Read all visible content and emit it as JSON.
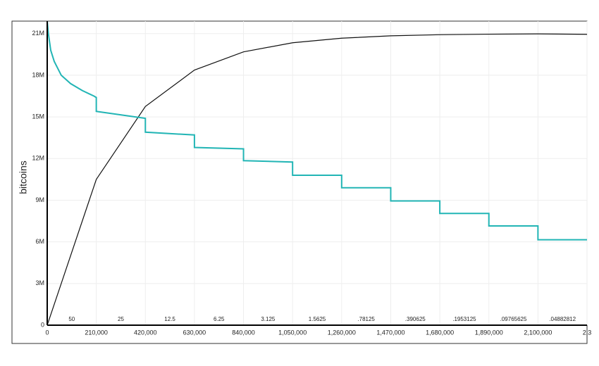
{
  "chart_data": {
    "type": "line",
    "y_label": "bitcoins",
    "xlim": [
      0,
      2310000
    ],
    "ylim": [
      0,
      21900000
    ],
    "grid": true,
    "xticks": [
      0,
      {
        "value": 210000,
        "label": "210,000"
      },
      {
        "value": 420000,
        "label": "420,000"
      },
      {
        "value": 630000,
        "label": "630,000"
      },
      {
        "value": 840000,
        "label": "840,000"
      },
      {
        "value": 1050000,
        "label": "1,050,000"
      },
      {
        "value": 1260000,
        "label": "1,260,000"
      },
      {
        "value": 1470000,
        "label": "1,470,000"
      },
      {
        "value": 1680000,
        "label": "1,680,000"
      },
      {
        "value": 1890000,
        "label": "1,890,000"
      },
      {
        "value": 2100000,
        "label": "2,100,000"
      },
      {
        "value": 2310000,
        "label": "2,3"
      }
    ],
    "yticks": [
      0,
      {
        "value": 3000000,
        "label": "3M"
      },
      {
        "value": 6000000,
        "label": "6M"
      },
      {
        "value": 9000000,
        "label": "9M"
      },
      {
        "value": 12000000,
        "label": "12M"
      },
      {
        "value": 15000000,
        "label": "15M"
      },
      {
        "value": 18000000,
        "label": "18M"
      },
      {
        "value": 21000000,
        "label": "21M"
      }
    ],
    "reward_labels": [
      "50",
      "25",
      "12.5",
      "6.25",
      "3.125",
      "1.5625",
      ".78125",
      ".390625",
      ".1953125",
      ".09765625",
      ".04882812"
    ],
    "series": [
      {
        "color": "#111111",
        "x": [
          0,
          210000,
          420000,
          630000,
          840000,
          1050000,
          1260000,
          1470000,
          1680000,
          1890000,
          2100000,
          2310000
        ],
        "values": [
          0,
          10500000,
          15750000,
          18375000,
          19687500,
          20340000,
          20670000,
          20840000,
          20920000,
          20960000,
          20980000,
          20950000
        ]
      },
      {
        "color": "#22b5b5",
        "x": [
          0,
          5000,
          15000,
          30000,
          60000,
          100000,
          150000,
          200000,
          210000,
          210000,
          420000,
          420000,
          630000,
          630000,
          840000,
          840000,
          1050000,
          1050000,
          1260000,
          1260000,
          1470000,
          1470000,
          1680000,
          1680000,
          1890000,
          1890000,
          2100000,
          2100000,
          2310000
        ],
        "values": [
          21900000,
          21000000,
          19800000,
          19000000,
          18000000,
          17400000,
          16900000,
          16500000,
          16400000,
          15400000,
          14900000,
          13900000,
          13700000,
          12800000,
          12700000,
          11850000,
          11750000,
          10800000,
          10800000,
          9900000,
          9900000,
          8950000,
          8950000,
          8050000,
          8050000,
          7150000,
          7150000,
          6150000,
          6150000
        ]
      }
    ]
  }
}
